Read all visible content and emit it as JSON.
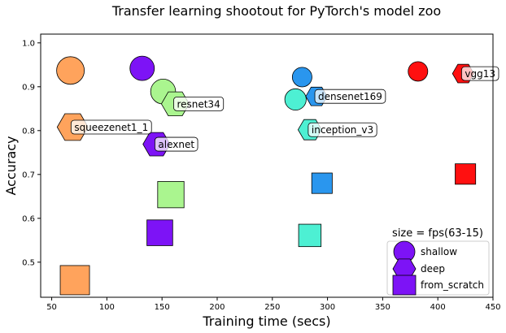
{
  "chart_data": {
    "type": "scatter",
    "title": "Transfer learning shootout for PyTorch's model zoo",
    "xlabel": "Training time (secs)",
    "ylabel": "Accuracy",
    "xlim": [
      40,
      450
    ],
    "ylim": [
      0.42,
      1.02
    ],
    "xticks": [
      50,
      100,
      150,
      200,
      250,
      300,
      350,
      400,
      450
    ],
    "yticks": [
      0.5,
      0.6,
      0.7,
      0.8,
      0.9,
      1.0
    ],
    "grid": false,
    "legend": {
      "title": "size = fps(63-15)",
      "placement": "lower-right",
      "entries": [
        {
          "label": "shallow",
          "marker": "circle"
        },
        {
          "label": "deep",
          "marker": "hexagon"
        },
        {
          "label": "from_scratch",
          "marker": "square"
        }
      ]
    },
    "models": [
      {
        "name": "squeezenet1_1",
        "color": "#ffa35c",
        "shallow": [
          67,
          0.937
        ],
        "deep": [
          69,
          0.808
        ],
        "from_scratch": [
          71,
          0.459
        ],
        "size": 1.0
      },
      {
        "name": "alexnet",
        "color": "#7d13f6",
        "shallow": [
          132,
          0.942
        ],
        "deep": [
          145,
          0.769
        ],
        "from_scratch": [
          148,
          0.567
        ],
        "size": 0.82
      },
      {
        "name": "resnet34",
        "color": "#aaf58f",
        "shallow": [
          151,
          0.889
        ],
        "deep": [
          162,
          0.861
        ],
        "from_scratch": [
          158,
          0.654
        ],
        "size": 0.85
      },
      {
        "name": "inception_v3",
        "color": "#4df0d3",
        "shallow": [
          271,
          0.871
        ],
        "deep": [
          284,
          0.802
        ],
        "from_scratch": [
          284,
          0.561
        ],
        "size": 0.65
      },
      {
        "name": "densenet169",
        "color": "#2a96ee",
        "shallow": [
          277,
          0.922
        ],
        "deep": [
          290,
          0.878
        ],
        "from_scratch": [
          295,
          0.68
        ],
        "size": 0.55
      },
      {
        "name": "vgg13",
        "color": "#ff1010",
        "shallow": [
          382,
          0.935
        ],
        "deep": [
          423,
          0.93
        ],
        "from_scratch": [
          425,
          0.701
        ],
        "size": 0.55
      }
    ],
    "point_labels": [
      {
        "text": "squeezenet1_1",
        "x": 69,
        "y": 0.808
      },
      {
        "text": "alexnet",
        "x": 145,
        "y": 0.769
      },
      {
        "text": "resnet34",
        "x": 162,
        "y": 0.861
      },
      {
        "text": "inception_v3",
        "x": 284,
        "y": 0.802
      },
      {
        "text": "densenet169",
        "x": 290,
        "y": 0.878
      },
      {
        "text": "vgg13",
        "x": 423,
        "y": 0.93
      }
    ]
  }
}
